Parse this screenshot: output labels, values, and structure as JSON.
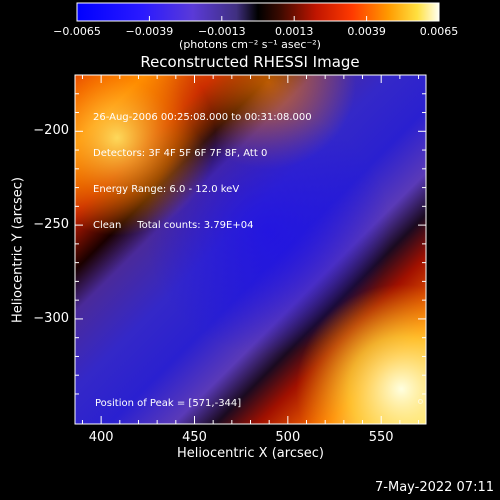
{
  "chart_data": {
    "type": "heatmap",
    "title": "Reconstructed RHESSI Image",
    "xlabel": "Heliocentric X (arcsec)",
    "ylabel": "Heliocentric Y (arcsec)",
    "xlim": [
      386,
      574
    ],
    "ylim": [
      -356,
      -170
    ],
    "x_ticks": [
      400,
      450,
      500,
      550
    ],
    "x_tick_labels": [
      "400",
      "450",
      "500",
      "550"
    ],
    "y_ticks": [
      -200,
      -250,
      -300
    ],
    "y_tick_labels": [
      "−200",
      "−250",
      "−300"
    ],
    "colorbar": {
      "range": [
        -0.0065,
        0.0065
      ],
      "ticks": [
        -0.0065,
        -0.0039,
        -0.0013,
        0.0013,
        0.0039,
        0.0065
      ],
      "tick_labels": [
        "−0.0065",
        "−0.0039",
        "−0.0013",
        "0.0013",
        "0.0039",
        "0.0065"
      ],
      "unit_label": "(photons cm⁻² s⁻¹ asec⁻²)"
    },
    "annotations": [
      "26-Aug-2006 00:25:08.000 to 00:31:08.000",
      "Detectors: 3F 4F 5F 6F 7F 8F, Att 0",
      "Energy Range: 6.0 - 12.0 keV",
      "Clean     Total counts: 3.79E+04"
    ],
    "peak_label": "Position of Peak = [571,-344]",
    "peak": [
      571,
      -344
    ]
  },
  "timestamp": "7-May-2022 07:11"
}
